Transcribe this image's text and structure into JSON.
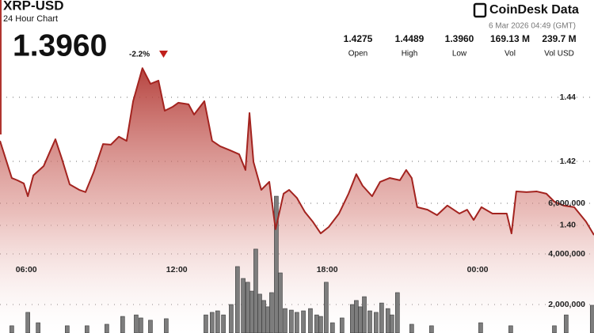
{
  "header": {
    "symbol": "XRP-USD",
    "subtitle": "24 Hour Chart",
    "price": "1.3960",
    "change": "-2.2%",
    "brand": "CoinDesk Data",
    "timestamp": "6 Mar 2026 04:49 (GMT)"
  },
  "stats": [
    {
      "value": "1.4275",
      "label": "Open"
    },
    {
      "value": "1.4489",
      "label": "High"
    },
    {
      "value": "1.3960",
      "label": "Low"
    },
    {
      "value": "169.13 M",
      "label": "Vol"
    },
    {
      "value": "239.7 M",
      "label": "Vol USD"
    }
  ],
  "chart_data": {
    "type": "area",
    "line_color": "#a3231f",
    "fill_color": "#b0342f",
    "bar_color": "#7d7d7d",
    "xlim": [
      4.95,
      28.64
    ],
    "xticks": [
      {
        "value": 6,
        "label": "06:00"
      },
      {
        "value": 12,
        "label": "12:00"
      },
      {
        "value": 18,
        "label": "18:00"
      },
      {
        "value": 24,
        "label": "00:00"
      }
    ],
    "ylim": [
      1.3664,
      1.4605
    ],
    "yticks": [
      {
        "value": 1.4,
        "label": "1.40"
      },
      1.42,
      1.44
    ],
    "y2lim": [
      875000,
      12781250
    ],
    "y2ticks": [
      {
        "value": 2000000,
        "label": "2,000,000"
      },
      {
        "value": 4000000,
        "label": "4,000,000"
      },
      {
        "value": 6000000,
        "label": "6,000,000"
      }
    ],
    "grid": true,
    "price": {
      "x": [
        4.95,
        5.42,
        5.64,
        5.9,
        6.06,
        6.28,
        6.69,
        6.94,
        7.16,
        7.41,
        7.73,
        8.11,
        8.36,
        8.68,
        9.06,
        9.37,
        9.69,
        10.0,
        10.26,
        10.63,
        10.95,
        11.27,
        11.52,
        11.83,
        12.06,
        12.47,
        12.69,
        13.1,
        13.41,
        13.73,
        14.11,
        14.49,
        14.74,
        14.9,
        15.06,
        15.37,
        15.69,
        15.94,
        16.26,
        16.48,
        16.79,
        17.11,
        17.42,
        17.74,
        18.06,
        18.47,
        18.85,
        19.16,
        19.41,
        19.79,
        20.11,
        20.49,
        20.9,
        21.15,
        21.37,
        21.59,
        22.0,
        22.38,
        22.79,
        23.27,
        23.58,
        23.84,
        24.15,
        24.59,
        25.16,
        25.35,
        25.54,
        25.95,
        26.36,
        26.74,
        27.06,
        27.43,
        27.85,
        28.32,
        28.64
      ],
      "values": [
        1.4264,
        1.4148,
        1.4141,
        1.4131,
        1.4091,
        1.4156,
        1.4185,
        1.423,
        1.4269,
        1.421,
        1.4128,
        1.4111,
        1.4104,
        1.4165,
        1.4254,
        1.4252,
        1.4277,
        1.4264,
        1.4388,
        1.4491,
        1.4442,
        1.4452,
        1.4358,
        1.437,
        1.4383,
        1.4378,
        1.4346,
        1.4388,
        1.4264,
        1.4247,
        1.4235,
        1.4222,
        1.4173,
        1.4351,
        1.4198,
        1.4111,
        1.4136,
        1.3988,
        1.4099,
        1.4111,
        1.4086,
        1.4042,
        1.4012,
        1.3975,
        1.3995,
        1.4037,
        1.4099,
        1.416,
        1.4124,
        1.4091,
        1.4136,
        1.4148,
        1.4141,
        1.4173,
        1.4148,
        1.4057,
        1.4049,
        1.4032,
        1.4062,
        1.4037,
        1.4049,
        1.4017,
        1.4057,
        1.4037,
        1.4037,
        1.3975,
        1.4106,
        1.4104,
        1.4106,
        1.4099,
        1.4074,
        1.4062,
        1.4057,
        1.4012,
        1.397
      ]
    },
    "volume": {
      "axis": "y2",
      "x": [
        5.42,
        6.06,
        6.47,
        7.63,
        8.42,
        9.21,
        9.84,
        10.38,
        10.57,
        10.95,
        11.58,
        13.16,
        13.41,
        13.63,
        13.86,
        14.17,
        14.42,
        14.65,
        14.83,
        14.99,
        15.15,
        15.31,
        15.47,
        15.62,
        15.78,
        15.97,
        16.13,
        16.32,
        16.57,
        16.79,
        17.05,
        17.33,
        17.58,
        17.74,
        17.96,
        18.21,
        18.59,
        19.0,
        19.16,
        19.32,
        19.48,
        19.7,
        19.95,
        20.17,
        20.42,
        20.58,
        20.8,
        21.37,
        22.16,
        24.12,
        25.32,
        27.06,
        27.53,
        28.57
      ],
      "values": [
        1160000,
        1690000,
        1280000,
        1160000,
        1160000,
        1220000,
        1530000,
        1590000,
        1470000,
        1380000,
        1440000,
        1590000,
        1690000,
        1750000,
        1590000,
        2000000,
        3500000,
        3030000,
        2880000,
        2530000,
        4190000,
        2410000,
        2160000,
        1910000,
        2470000,
        6280000,
        3250000,
        1840000,
        1780000,
        1690000,
        1750000,
        1840000,
        1590000,
        1530000,
        2880000,
        1280000,
        1470000,
        2000000,
        2160000,
        1910000,
        2310000,
        1750000,
        1690000,
        2060000,
        1840000,
        1590000,
        2470000,
        1220000,
        1160000,
        1280000,
        1160000,
        1160000,
        1590000,
        1970000
      ]
    }
  }
}
